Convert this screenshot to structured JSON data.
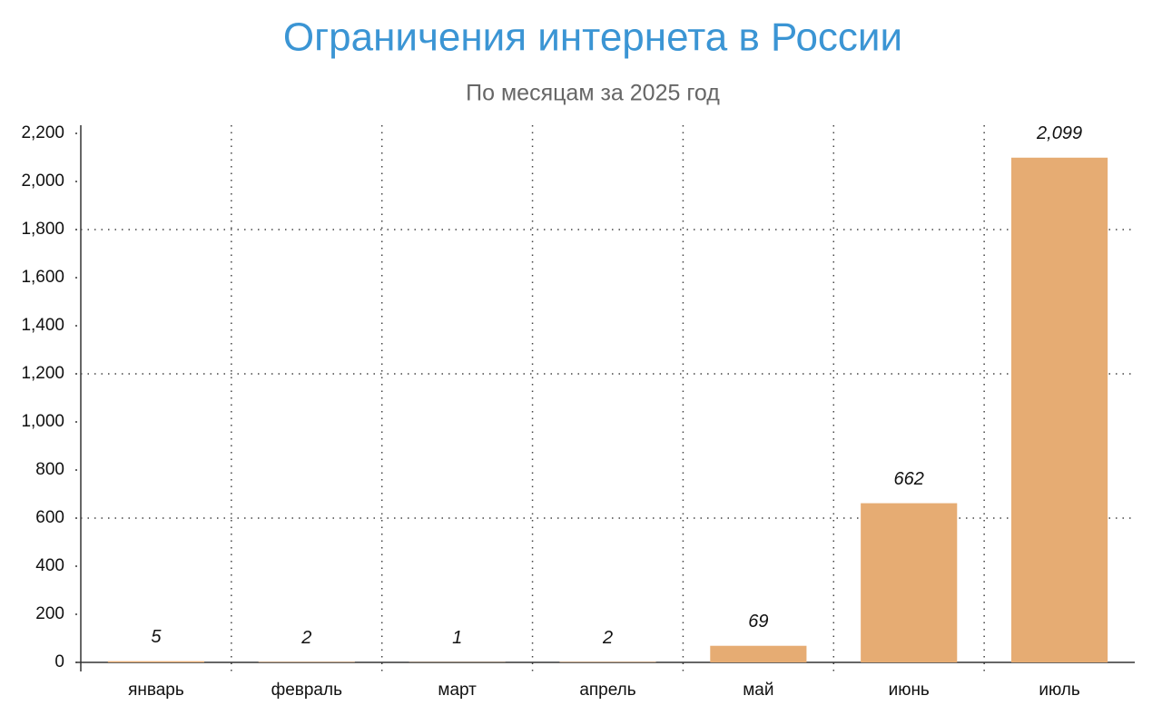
{
  "chart_data": {
    "type": "bar",
    "title": "Ограничения интернета в России",
    "subtitle": "По месяцам за 2025 год",
    "categories": [
      "январь",
      "февраль",
      "март",
      "апрель",
      "май",
      "июнь",
      "июль"
    ],
    "values": [
      5,
      2,
      1,
      2,
      69,
      662,
      2099
    ],
    "value_labels": [
      "5",
      "2",
      "1",
      "2",
      "69",
      "662",
      "2,099"
    ],
    "color": "#e6ac73",
    "ylim": [
      0,
      2200
    ],
    "yticks": [
      0,
      200,
      400,
      600,
      800,
      {
        "value": 1000,
        "label": "1,000"
      },
      {
        "value": 1200,
        "label": "1,200"
      },
      {
        "value": 1400,
        "label": "1,400"
      },
      {
        "value": 1600,
        "label": "1,600"
      },
      {
        "value": 1800,
        "label": "1,800"
      },
      {
        "value": 2000,
        "label": "2,000"
      },
      {
        "value": 2200,
        "label": "2,200"
      }
    ],
    "ygrid": [
      600,
      1200,
      1800
    ]
  }
}
